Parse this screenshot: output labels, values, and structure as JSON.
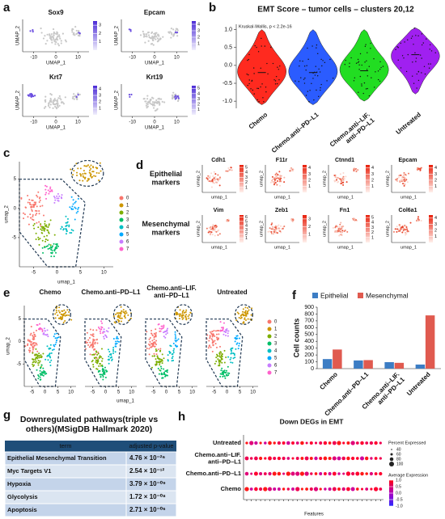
{
  "panel_labels": [
    "a",
    "b",
    "c",
    "d",
    "e",
    "f",
    "g",
    "h"
  ],
  "panel_a": {
    "x_label": "UMAP_1",
    "y_label": "UMAP_2",
    "xlim": [
      -15,
      15
    ],
    "xticks": [
      -10,
      0,
      10
    ],
    "plots": [
      {
        "title": "Sox9",
        "scale_lim": [
          0,
          3.5
        ],
        "scale_ticks": [
          1,
          2,
          3
        ]
      },
      {
        "title": "Epcam",
        "scale_lim": [
          0,
          4.5
        ],
        "scale_ticks": [
          1,
          2,
          3,
          4
        ]
      },
      {
        "title": "Krt7",
        "scale_lim": [
          0,
          4.5
        ],
        "scale_ticks": [
          1,
          2,
          3,
          4
        ]
      },
      {
        "title": "Krt19",
        "scale_lim": [
          0,
          5.5
        ],
        "scale_ticks": [
          1,
          2,
          3,
          4,
          5
        ]
      }
    ]
  },
  "chart_data": [
    {
      "type": "violin",
      "title": "EMT Score – tumor cells – clusters 20,12",
      "annotation": "Kruskal-Wallis, p < 2.2e-16",
      "categories": [
        "Chemo",
        "Chemo.anti–PD–L1",
        "Chemo.anti–LIF.\nanti–PD–L1",
        "Untreated"
      ],
      "values": [
        -0.2,
        -0.2,
        -0.15,
        0.3
      ],
      "min": [
        -1.1,
        -1.1,
        -1.0,
        -0.8
      ],
      "max": [
        1.0,
        1.0,
        1.0,
        1.05
      ],
      "colors": [
        "#ff2a1f",
        "#2b5cff",
        "#22dd22",
        "#a020f0"
      ],
      "ylim": [
        -1.2,
        1.15
      ],
      "yticks": [
        {
          "value": -1,
          "label": "-1.0"
        },
        {
          "value": -0.5,
          "label": "-0.5"
        },
        {
          "value": 0,
          "label": "0.0"
        },
        {
          "value": 0.5,
          "label": "0.5"
        },
        {
          "value": 1,
          "label": "1.0"
        }
      ]
    },
    {
      "type": "bar",
      "y_label": "Cell counts",
      "legend": "top",
      "categories": [
        "Chemo",
        "Chemo.anti–PD–L1",
        "Chemo.anti–LIF.\nanti–PD–L1",
        "Untreated"
      ],
      "series": [
        {
          "name": "Epithelial",
          "color": "#3c7dc4",
          "values": [
            140,
            120,
            95,
            60
          ]
        },
        {
          "name": "Mesenchymal",
          "color": "#e05a4f",
          "values": [
            280,
            125,
            85,
            780
          ]
        }
      ],
      "ylim": [
        0,
        900
      ],
      "yticks": [
        0,
        100,
        200,
        300,
        400,
        500,
        600,
        700,
        800,
        900
      ]
    },
    {
      "type": "dot",
      "title": "Down DEGs in EMT",
      "x_label": "Features",
      "categories": [
        "Untreated",
        "Chemo.anti–LIF.\nanti–PD–L1",
        "Chemo.anti–PD–L1",
        "Chemo"
      ],
      "size_legend": {
        "title": "Percent Expressed",
        "values": [
          40,
          60,
          80,
          100
        ]
      },
      "color_legend": {
        "title": "Average Expression",
        "lim": [
          -1,
          1
        ],
        "ticks": [
          {
            "value": 1,
            "label": "1.0"
          },
          {
            "value": 0.5,
            "label": "0.5"
          },
          {
            "value": 0,
            "label": "0.0"
          },
          {
            "value": -0.5,
            "label": "-0.5"
          },
          {
            "value": -1,
            "label": "-1.0"
          }
        ]
      }
    }
  ],
  "panel_c": {
    "x_label": "umap_1",
    "y_label": "umap_2",
    "xlim": [
      -8,
      12
    ],
    "ylim": [
      -10,
      8
    ],
    "xticks": [
      -5,
      0,
      5,
      10
    ],
    "yticks": [
      -5,
      0,
      5
    ],
    "clusters": [
      "0",
      "1",
      "2",
      "3",
      "4",
      "5",
      "6",
      "7"
    ],
    "colors": [
      "#f8766d",
      "#cd9600",
      "#7cae00",
      "#00be67",
      "#00bfc4",
      "#00a9ff",
      "#c77cff",
      "#ff61cc"
    ]
  },
  "panel_d": {
    "x_label": "umap_1",
    "y_label": "umap_2",
    "rows": [
      {
        "label": "Epithelial\nmarkers",
        "genes": [
          {
            "name": "Cdh1",
            "scale_lim": [
              0,
              5.5
            ],
            "scale_ticks": [
              1,
              2,
              3,
              4,
              5
            ]
          },
          {
            "name": "F11r",
            "scale_lim": [
              0,
              4.5
            ],
            "scale_ticks": [
              1,
              2,
              3,
              4
            ]
          },
          {
            "name": "Ctnnd1",
            "scale_lim": [
              0,
              4.5
            ],
            "scale_ticks": [
              1,
              2,
              3,
              4
            ]
          },
          {
            "name": "Epcam",
            "scale_lim": [
              0,
              4.5
            ],
            "scale_ticks": [
              1,
              2,
              3,
              4
            ]
          }
        ]
      },
      {
        "label": "Mesenchymal\nmarkers",
        "genes": [
          {
            "name": "Vim",
            "scale_lim": [
              0,
              6.5
            ],
            "scale_ticks": [
              1,
              2,
              3,
              4,
              5,
              6
            ]
          },
          {
            "name": "Zeb1",
            "scale_lim": [
              0,
              3.5
            ],
            "scale_ticks": [
              1,
              2,
              3
            ]
          },
          {
            "name": "Fn1",
            "scale_lim": [
              0,
              5.5
            ],
            "scale_ticks": [
              1,
              2,
              3,
              4,
              5
            ]
          },
          {
            "name": "Col6a1",
            "scale_lim": [
              0,
              4.5
            ],
            "scale_ticks": [
              1,
              2,
              3,
              4
            ]
          }
        ]
      }
    ]
  },
  "panel_e": {
    "titles": [
      "Chemo",
      "Chemo.anti–PD–L1",
      "Chemo.anti–LIF.\nanti–PD–L1",
      "Untreated"
    ],
    "x_label": "umap_1",
    "y_label": "umap_2",
    "xlim": [
      -8,
      12
    ],
    "ylim": [
      -10,
      8
    ],
    "xticks": [
      -5,
      0,
      5,
      10
    ],
    "yticks": [
      -5,
      0,
      5
    ],
    "clusters": [
      "0",
      "1",
      "2",
      "3",
      "4",
      "5",
      "6",
      "7"
    ],
    "colors": [
      "#f8766d",
      "#cd9600",
      "#7cae00",
      "#00be67",
      "#00bfc4",
      "#00a9ff",
      "#c77cff",
      "#ff61cc"
    ]
  },
  "panel_g": {
    "title": "Downregulated pathways(triple vs\nothers)(MSigDB Hallmark 2020)",
    "table": {
      "header": [
        "term",
        "adjusted p-value"
      ],
      "rows": [
        [
          "Epithelial Mesenchymal Transition",
          "4.76 × 10⁻²⁶"
        ],
        [
          "Myc Targets V1",
          "2.54 × 10⁻¹²"
        ],
        [
          "Hypoxia",
          "3.79 × 10⁻⁰⁹"
        ],
        [
          "Glycolysis",
          "1.72 × 10⁻⁰⁸"
        ],
        [
          "Apoptosis",
          "2.71 × 10⁻⁰⁶"
        ]
      ]
    }
  }
}
